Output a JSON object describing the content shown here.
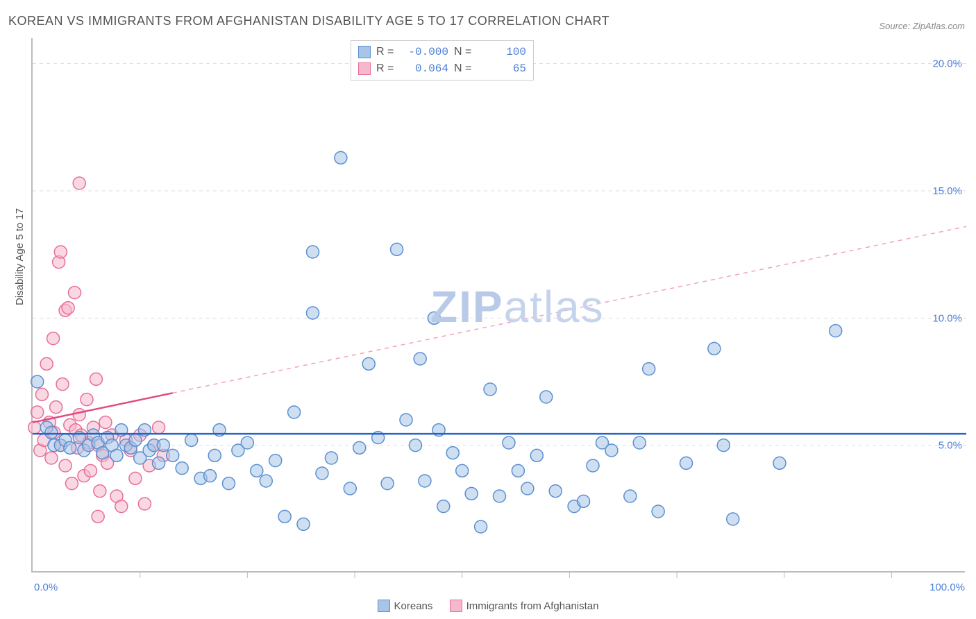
{
  "title": "KOREAN VS IMMIGRANTS FROM AFGHANISTAN DISABILITY AGE 5 TO 17 CORRELATION CHART",
  "source": "Source: ZipAtlas.com",
  "ylabel": "Disability Age 5 to 17",
  "watermark_a": "ZIP",
  "watermark_b": "atlas",
  "chart": {
    "type": "scatter",
    "xlim": [
      0,
      100
    ],
    "ylim": [
      0,
      21
    ],
    "yticks": [
      5,
      10,
      15,
      20
    ],
    "ytick_labels": [
      "5.0%",
      "10.0%",
      "15.0%",
      "20.0%"
    ],
    "xtick_positions": [
      11.5,
      23,
      34.5,
      46,
      57.5,
      69,
      80.5,
      92
    ],
    "xtick_labels_left": "0.0%",
    "xtick_labels_right": "100.0%",
    "background_color": "#ffffff",
    "grid_color": "#dddddd",
    "axis_color": "#bbbbbb",
    "label_color": "#4a7fd8"
  },
  "series": [
    {
      "name": "Koreans",
      "legend_label": "Koreans",
      "color_fill": "#a8c5e8",
      "color_stroke": "#5a8fd0",
      "marker_r": 9,
      "R_label": "R =",
      "R": "-0.000",
      "N_label": "N =",
      "N": "100",
      "trend": {
        "x1": 0,
        "y1": 5.45,
        "x2": 100,
        "y2": 5.45,
        "colorA": "#2563c9",
        "colorB": "#5a8fd0"
      },
      "solid_frac": 1.0,
      "points": [
        [
          0.5,
          7.5
        ],
        [
          1.5,
          5.7
        ],
        [
          2.0,
          5.5
        ],
        [
          2.3,
          5.0
        ],
        [
          3.0,
          5.0
        ],
        [
          3.5,
          5.2
        ],
        [
          4.0,
          4.9
        ],
        [
          5.0,
          5.3
        ],
        [
          5.5,
          4.8
        ],
        [
          6.0,
          5.0
        ],
        [
          6.5,
          5.4
        ],
        [
          7.0,
          5.1
        ],
        [
          7.5,
          4.7
        ],
        [
          8.0,
          5.3
        ],
        [
          8.5,
          5.0
        ],
        [
          9.0,
          4.6
        ],
        [
          9.5,
          5.6
        ],
        [
          10.0,
          5.0
        ],
        [
          10.5,
          4.9
        ],
        [
          11.0,
          5.2
        ],
        [
          11.5,
          4.5
        ],
        [
          12.0,
          5.6
        ],
        [
          12.5,
          4.8
        ],
        [
          13.0,
          5.0
        ],
        [
          13.5,
          4.3
        ],
        [
          14.0,
          5.0
        ],
        [
          15.0,
          4.6
        ],
        [
          16.0,
          4.1
        ],
        [
          17.0,
          5.2
        ],
        [
          18.0,
          3.7
        ],
        [
          19.0,
          3.8
        ],
        [
          19.5,
          4.6
        ],
        [
          20.0,
          5.6
        ],
        [
          21.0,
          3.5
        ],
        [
          22.0,
          4.8
        ],
        [
          23.0,
          5.1
        ],
        [
          24.0,
          4.0
        ],
        [
          25.0,
          3.6
        ],
        [
          26.0,
          4.4
        ],
        [
          27.0,
          2.2
        ],
        [
          28.0,
          6.3
        ],
        [
          29.0,
          1.9
        ],
        [
          30.0,
          10.2
        ],
        [
          30.0,
          12.6
        ],
        [
          31.0,
          3.9
        ],
        [
          32.0,
          4.5
        ],
        [
          33.0,
          16.3
        ],
        [
          34.0,
          3.3
        ],
        [
          35.0,
          4.9
        ],
        [
          36.0,
          8.2
        ],
        [
          37.0,
          5.3
        ],
        [
          38.0,
          3.5
        ],
        [
          39.0,
          12.7
        ],
        [
          40.0,
          6.0
        ],
        [
          41.0,
          5.0
        ],
        [
          41.5,
          8.4
        ],
        [
          42.0,
          3.6
        ],
        [
          43.0,
          10.0
        ],
        [
          43.5,
          5.6
        ],
        [
          44.0,
          2.6
        ],
        [
          45.0,
          4.7
        ],
        [
          46.0,
          4.0
        ],
        [
          47.0,
          3.1
        ],
        [
          48.0,
          1.8
        ],
        [
          49.0,
          7.2
        ],
        [
          50.0,
          3.0
        ],
        [
          51.0,
          5.1
        ],
        [
          52.0,
          4.0
        ],
        [
          53.0,
          3.3
        ],
        [
          54.0,
          4.6
        ],
        [
          55.0,
          6.9
        ],
        [
          56.0,
          3.2
        ],
        [
          58.0,
          2.6
        ],
        [
          59.0,
          2.8
        ],
        [
          60.0,
          4.2
        ],
        [
          61.0,
          5.1
        ],
        [
          62.0,
          4.8
        ],
        [
          64.0,
          3.0
        ],
        [
          65.0,
          5.1
        ],
        [
          66.0,
          8.0
        ],
        [
          67.0,
          2.4
        ],
        [
          70.0,
          4.3
        ],
        [
          73.0,
          8.8
        ],
        [
          74.0,
          5.0
        ],
        [
          75.0,
          2.1
        ],
        [
          80.0,
          4.3
        ],
        [
          86.0,
          9.5
        ]
      ]
    },
    {
      "name": "Immigrants from Afghanistan",
      "legend_label": "Immigrants from Afghanistan",
      "color_fill": "#f5b8cc",
      "color_stroke": "#e86d9a",
      "marker_r": 9,
      "R_label": "R =",
      "R": "0.064",
      "N_label": "N =",
      "N": "65",
      "trend": {
        "x1": 0,
        "y1": 5.9,
        "x2": 100,
        "y2": 13.6,
        "colorA": "#e04a82",
        "colorB": "#f2a0bd"
      },
      "solid_frac": 0.15,
      "points": [
        [
          0.2,
          5.7
        ],
        [
          0.5,
          6.3
        ],
        [
          0.8,
          4.8
        ],
        [
          1.0,
          7.0
        ],
        [
          1.2,
          5.2
        ],
        [
          1.5,
          8.2
        ],
        [
          1.8,
          5.9
        ],
        [
          2.0,
          4.5
        ],
        [
          2.2,
          9.2
        ],
        [
          2.3,
          5.5
        ],
        [
          2.5,
          6.5
        ],
        [
          2.8,
          12.2
        ],
        [
          3.0,
          12.6
        ],
        [
          3.0,
          5.0
        ],
        [
          3.2,
          7.4
        ],
        [
          3.5,
          4.2
        ],
        [
          3.5,
          10.3
        ],
        [
          3.8,
          10.4
        ],
        [
          4.0,
          5.8
        ],
        [
          4.2,
          3.5
        ],
        [
          4.5,
          11.0
        ],
        [
          4.6,
          5.6
        ],
        [
          4.8,
          4.9
        ],
        [
          5.0,
          6.2
        ],
        [
          5.0,
          15.3
        ],
        [
          5.2,
          5.4
        ],
        [
          5.5,
          3.8
        ],
        [
          5.8,
          6.8
        ],
        [
          6.0,
          5.1
        ],
        [
          6.2,
          4.0
        ],
        [
          6.5,
          5.7
        ],
        [
          6.8,
          7.6
        ],
        [
          7.0,
          5.0
        ],
        [
          7.2,
          3.2
        ],
        [
          7.5,
          4.6
        ],
        [
          7.8,
          5.9
        ],
        [
          8.0,
          4.3
        ],
        [
          8.5,
          5.4
        ],
        [
          9.0,
          3.0
        ],
        [
          9.5,
          2.6
        ],
        [
          10.0,
          5.2
        ],
        [
          10.5,
          4.8
        ],
        [
          11.0,
          3.7
        ],
        [
          11.5,
          5.4
        ],
        [
          12.0,
          2.7
        ],
        [
          12.5,
          4.2
        ],
        [
          13.0,
          5.0
        ],
        [
          13.5,
          5.7
        ],
        [
          14.0,
          4.6
        ],
        [
          7.0,
          2.2
        ]
      ]
    }
  ],
  "legend_bottom": [
    {
      "label": "Koreans",
      "fill": "#a8c5e8",
      "stroke": "#5a8fd0"
    },
    {
      "label": "Immigrants from Afghanistan",
      "fill": "#f5b8cc",
      "stroke": "#e86d9a"
    }
  ]
}
